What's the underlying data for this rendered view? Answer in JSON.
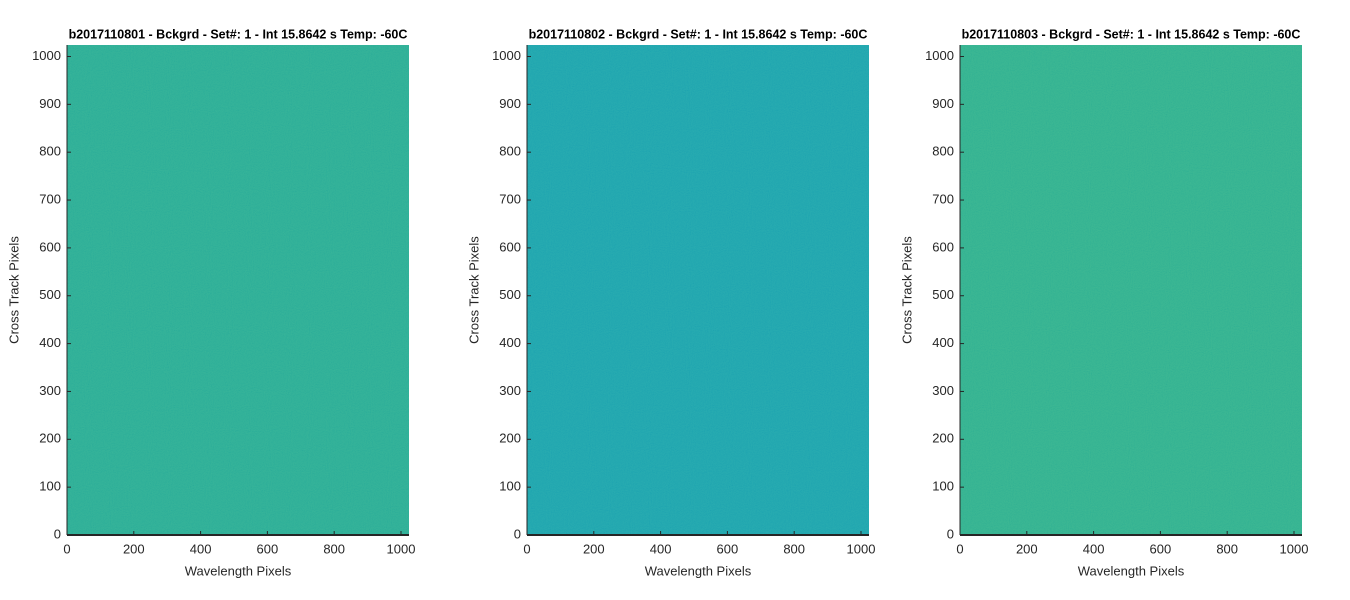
{
  "chart_data": [
    {
      "type": "image",
      "title": "b2017110801 - Bckgrd - Set#: 1 - Int 15.8642 s Temp: -60C",
      "xlabel": "Wavelength Pixels",
      "ylabel": "Cross Track Pixels",
      "xlim": [
        0,
        1024
      ],
      "ylim": [
        0,
        1024
      ],
      "xticks": [
        0,
        200,
        400,
        600,
        800,
        1000
      ],
      "yticks": [
        0,
        100,
        200,
        300,
        400,
        500,
        600,
        700,
        800,
        900,
        1000
      ],
      "color": "#2bada6"
    },
    {
      "type": "image",
      "title": "b2017110802 - Bckgrd - Set#: 1 - Int 15.8642 s Temp: -60C",
      "xlabel": "Wavelength Pixels",
      "ylabel": "Cross Track Pixels",
      "xlim": [
        0,
        1024
      ],
      "ylim": [
        0,
        1024
      ],
      "xticks": [
        0,
        200,
        400,
        600,
        800,
        1000
      ],
      "yticks": [
        0,
        100,
        200,
        300,
        400,
        500,
        600,
        700,
        800,
        900,
        1000
      ],
      "color": "#1ea4bb"
    },
    {
      "type": "image",
      "title": "b2017110803 - Bckgrd - Set#: 1 - Int 15.8642 s Temp: -60C",
      "xlabel": "Wavelength Pixels",
      "ylabel": "Cross Track Pixels",
      "xlim": [
        0,
        1024
      ],
      "ylim": [
        0,
        1024
      ],
      "xticks": [
        0,
        200,
        400,
        600,
        800,
        1000
      ],
      "yticks": [
        0,
        100,
        200,
        300,
        400,
        500,
        600,
        700,
        800,
        900,
        1000
      ],
      "color": "#31b1a0"
    }
  ]
}
